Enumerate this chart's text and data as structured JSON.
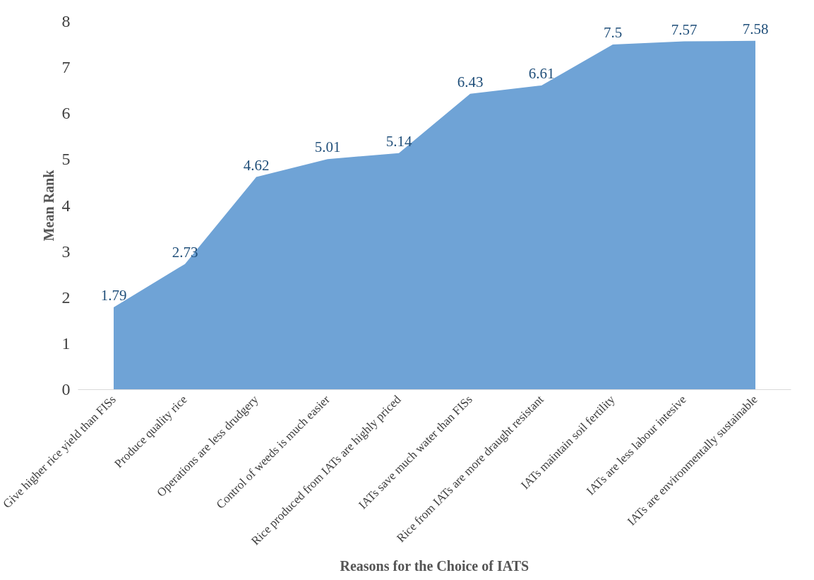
{
  "chart_data": {
    "type": "area",
    "xlabel": "Reasons for the Choice of IATS",
    "ylabel": "Mean Rank",
    "categories": [
      "Give higher rice yield than FISs",
      "Produce quality rice",
      "Operations are less drudgery",
      "Control of weeds is much easier",
      "Rice produced from IATs are highly priced",
      "IATs save much water than FISs",
      "Rice from IATs are more draught resistant",
      "IATs maintain soil fertility",
      "IATs are less labour intesive",
      "IATs are environmentally sustainable"
    ],
    "values": [
      1.79,
      2.73,
      4.62,
      5.01,
      5.14,
      6.43,
      6.61,
      7.5,
      7.57,
      7.58
    ],
    "color": "#6fa3d6",
    "ylim": [
      0,
      8
    ],
    "yticks": [
      0,
      1,
      2,
      3,
      4,
      5,
      6,
      7,
      8
    ],
    "grid": false,
    "data_labels": true
  }
}
